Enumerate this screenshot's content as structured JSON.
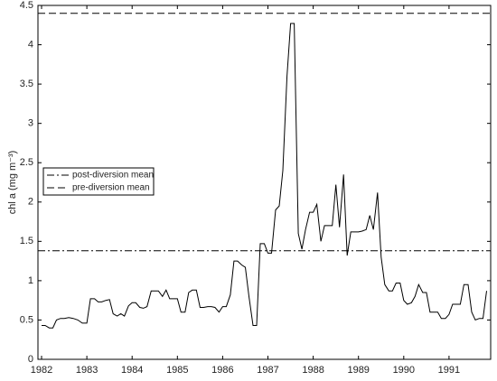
{
  "chart_data": {
    "type": "line",
    "ylabel": "chl a (mg m⁻³)",
    "x": [
      1982.0,
      1982.08,
      1982.17,
      1982.25,
      1982.33,
      1982.42,
      1982.5,
      1982.6,
      1982.7,
      1982.8,
      1982.9,
      1983.0,
      1983.08,
      1983.17,
      1983.25,
      1983.33,
      1983.42,
      1983.5,
      1983.58,
      1983.67,
      1983.75,
      1983.83,
      1983.92,
      1984.0,
      1984.08,
      1984.17,
      1984.25,
      1984.33,
      1984.42,
      1984.5,
      1984.58,
      1984.67,
      1984.75,
      1984.83,
      1984.92,
      1985.0,
      1985.08,
      1985.17,
      1985.25,
      1985.33,
      1985.42,
      1985.5,
      1985.58,
      1985.67,
      1985.75,
      1985.83,
      1985.92,
      1986.0,
      1986.08,
      1986.17,
      1986.25,
      1986.33,
      1986.42,
      1986.5,
      1986.58,
      1986.67,
      1986.75,
      1986.83,
      1986.92,
      1987.0,
      1987.08,
      1987.17,
      1987.25,
      1987.33,
      1987.42,
      1987.5,
      1987.58,
      1987.67,
      1987.75,
      1987.83,
      1987.92,
      1988.0,
      1988.08,
      1988.17,
      1988.25,
      1988.33,
      1988.42,
      1988.5,
      1988.58,
      1988.67,
      1988.75,
      1988.83,
      1988.92,
      1989.0,
      1989.08,
      1989.17,
      1989.25,
      1989.33,
      1989.42,
      1989.5,
      1989.58,
      1989.67,
      1989.75,
      1989.83,
      1989.92,
      1990.0,
      1990.08,
      1990.17,
      1990.25,
      1990.33,
      1990.42,
      1990.5,
      1990.58,
      1990.67,
      1990.75,
      1990.83,
      1990.92,
      1991.0,
      1991.08,
      1991.17,
      1991.25,
      1991.33,
      1991.42,
      1991.5,
      1991.58,
      1991.67,
      1991.75,
      1991.83
    ],
    "values": [
      0.43,
      0.43,
      0.4,
      0.4,
      0.5,
      0.52,
      0.52,
      0.53,
      0.52,
      0.5,
      0.46,
      0.46,
      0.77,
      0.77,
      0.73,
      0.73,
      0.75,
      0.76,
      0.58,
      0.55,
      0.58,
      0.55,
      0.68,
      0.72,
      0.72,
      0.66,
      0.65,
      0.67,
      0.87,
      0.87,
      0.87,
      0.8,
      0.88,
      0.77,
      0.77,
      0.77,
      0.6,
      0.6,
      0.85,
      0.88,
      0.88,
      0.66,
      0.66,
      0.67,
      0.67,
      0.66,
      0.6,
      0.67,
      0.67,
      0.82,
      1.25,
      1.25,
      1.2,
      1.17,
      0.8,
      0.43,
      0.43,
      1.47,
      1.47,
      1.35,
      1.35,
      1.9,
      1.95,
      2.4,
      3.6,
      4.27,
      4.27,
      1.6,
      1.4,
      1.65,
      1.87,
      1.87,
      1.97,
      1.5,
      1.7,
      1.7,
      1.7,
      2.22,
      1.68,
      2.35,
      1.32,
      1.62,
      1.62,
      1.62,
      1.63,
      1.65,
      1.83,
      1.65,
      2.12,
      1.3,
      0.95,
      0.87,
      0.87,
      0.97,
      0.97,
      0.75,
      0.7,
      0.72,
      0.8,
      0.95,
      0.85,
      0.85,
      0.6,
      0.6,
      0.6,
      0.52,
      0.52,
      0.57,
      0.7,
      0.7,
      0.7,
      0.95,
      0.95,
      0.6,
      0.5,
      0.52,
      0.52,
      0.87
    ],
    "color": "#000000",
    "reference_lines": [
      {
        "name": "post-diversion mean",
        "value": 1.38,
        "dash": "8 3 2 3"
      },
      {
        "name": "pre-diversion mean",
        "value": 4.4,
        "dash": "8 4"
      }
    ],
    "xlim": [
      1981.92,
      1991.92
    ],
    "ylim": [
      0,
      4.5
    ],
    "xticks": [
      1982,
      1983,
      1984,
      1985,
      1986,
      1987,
      1988,
      1989,
      1990,
      1991
    ],
    "yticks": [
      0,
      0.5,
      1,
      1.5,
      2,
      2.5,
      3,
      3.5,
      4,
      4.5
    ],
    "legend": "upper-left"
  }
}
